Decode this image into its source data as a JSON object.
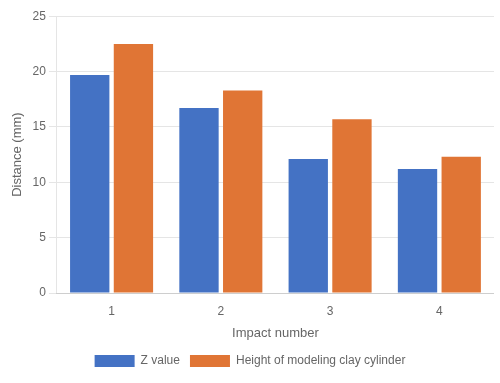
{
  "chart_data": {
    "type": "bar",
    "categories": [
      1,
      2,
      3,
      4
    ],
    "series": [
      {
        "name": "Z value",
        "color": "#4472C4",
        "values": [
          19.7,
          16.7,
          12.1,
          11.2
        ]
      },
      {
        "name": "Height of modeling clay cylinder",
        "color": "#E07535",
        "values": [
          22.5,
          18.3,
          15.7,
          12.3
        ]
      }
    ],
    "x_label": "Impact number",
    "y_label": "Distance (mm)",
    "ylim": [
      0,
      25
    ],
    "yticks": [
      0,
      5,
      10,
      15,
      20,
      25
    ],
    "grid": true,
    "legend": "bottom"
  }
}
